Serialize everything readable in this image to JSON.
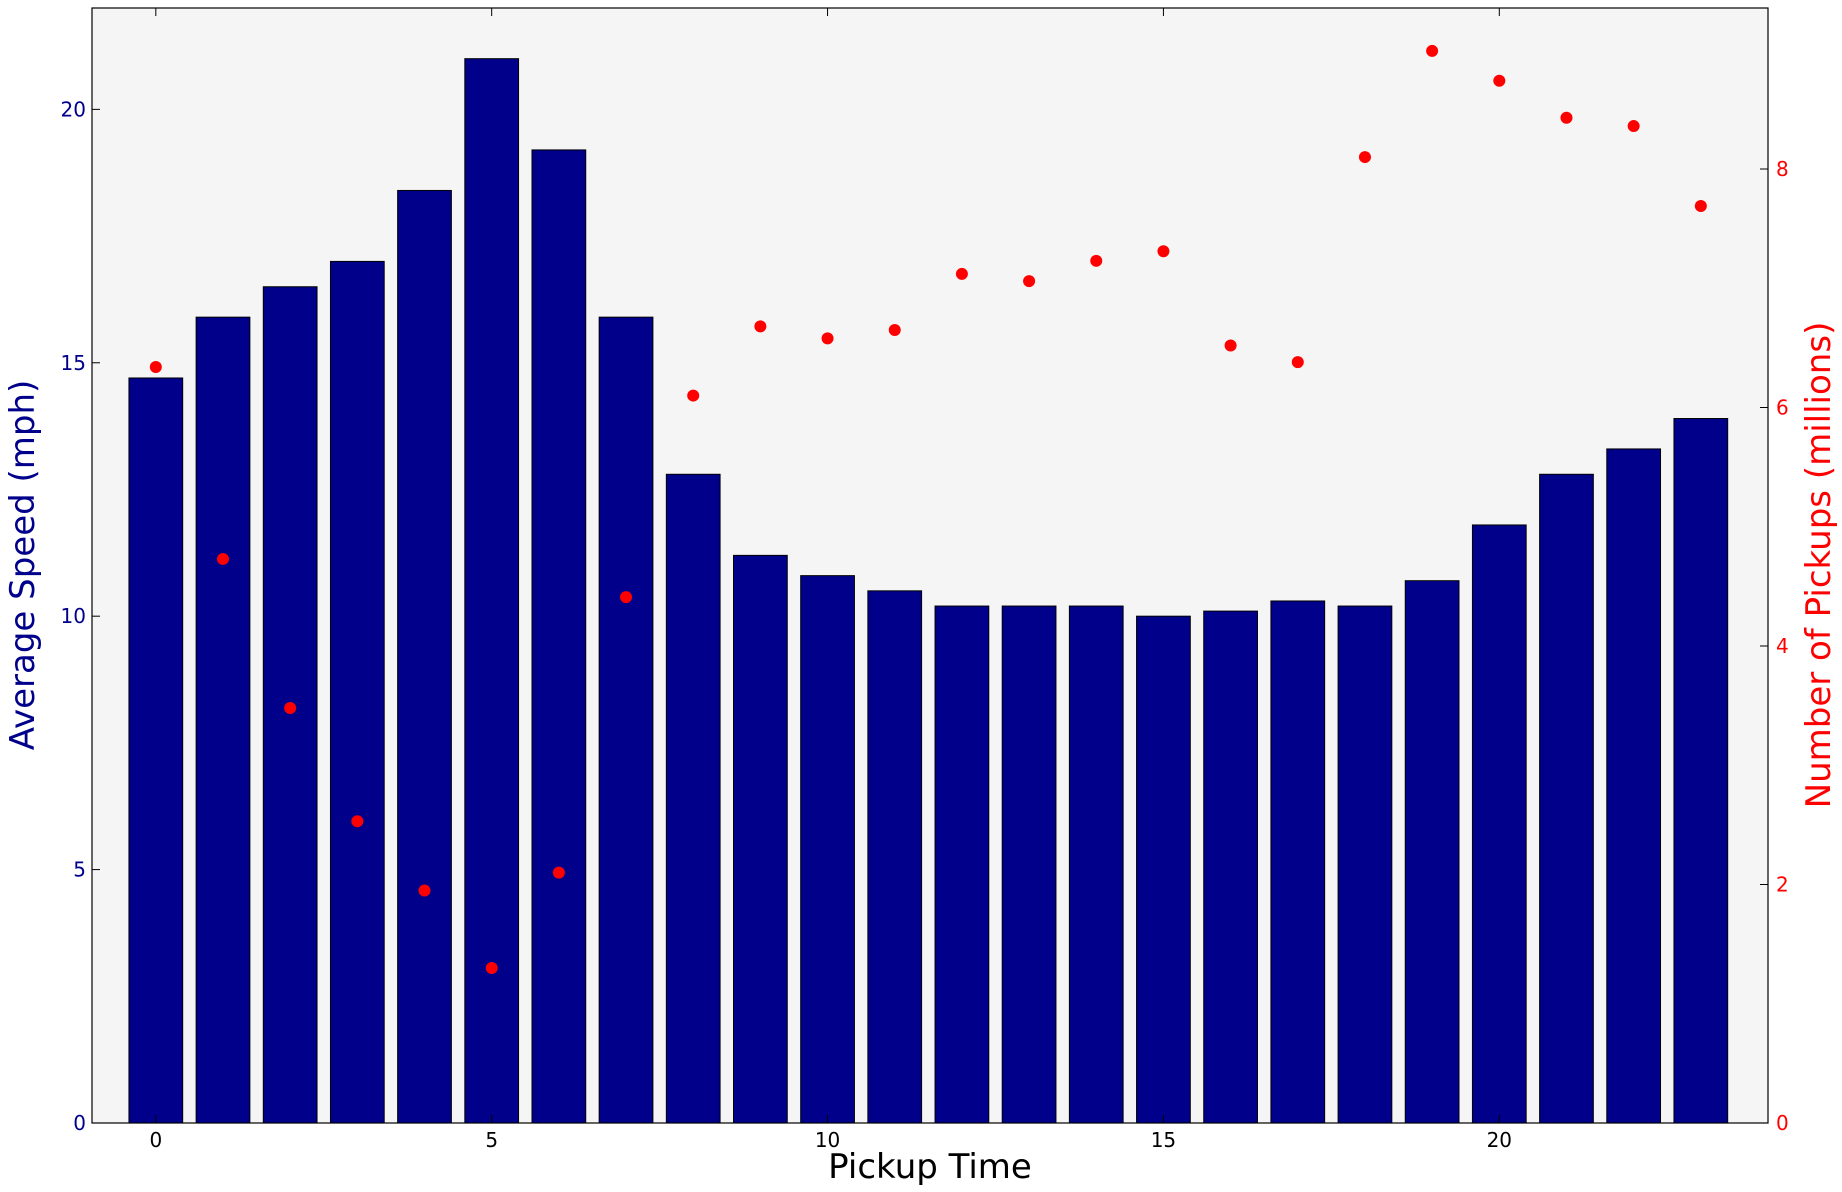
{
  "chart_data": {
    "type": "bar",
    "title": "",
    "xlabel": "Pickup Time",
    "ylabel": "Average Speed (mph)",
    "y2label": "Number of Pickups (millions)",
    "xlim": [
      -0.95,
      24.0
    ],
    "ylim": [
      0,
      22
    ],
    "y2lim": [
      0,
      9.35
    ],
    "x_ticks": [
      0,
      5,
      10,
      15,
      20
    ],
    "y_ticks": [
      0,
      5,
      10,
      15,
      20
    ],
    "y2_ticks": [
      0,
      2,
      4,
      6,
      8
    ],
    "grid": false,
    "legend": "none",
    "categories": [
      0,
      1,
      2,
      3,
      4,
      5,
      6,
      7,
      8,
      9,
      10,
      11,
      12,
      13,
      14,
      15,
      16,
      17,
      18,
      19,
      20,
      21,
      22,
      23
    ],
    "series": [
      {
        "type": "bar",
        "axis": "left",
        "color": "#00008b",
        "values": [
          14.7,
          15.9,
          16.5,
          17.0,
          18.4,
          21.0,
          19.2,
          15.9,
          12.8,
          11.2,
          10.8,
          10.5,
          10.2,
          10.2,
          10.2,
          10.0,
          10.1,
          10.3,
          10.2,
          10.7,
          11.8,
          12.8,
          13.3,
          13.9
        ]
      },
      {
        "type": "scatter",
        "axis": "right",
        "color": "#ff0000",
        "values": [
          6.34,
          4.73,
          3.48,
          2.53,
          1.95,
          1.3,
          2.1,
          4.41,
          6.1,
          6.68,
          6.58,
          6.65,
          7.12,
          7.06,
          7.23,
          7.31,
          6.52,
          6.38,
          8.1,
          8.99,
          8.74,
          8.43,
          8.36,
          7.69
        ]
      }
    ],
    "colors": {
      "plot_background": "#f5f5f5",
      "left_axis": "#00008b",
      "right_axis": "#ff0000",
      "x_axis": "#000000"
    }
  }
}
